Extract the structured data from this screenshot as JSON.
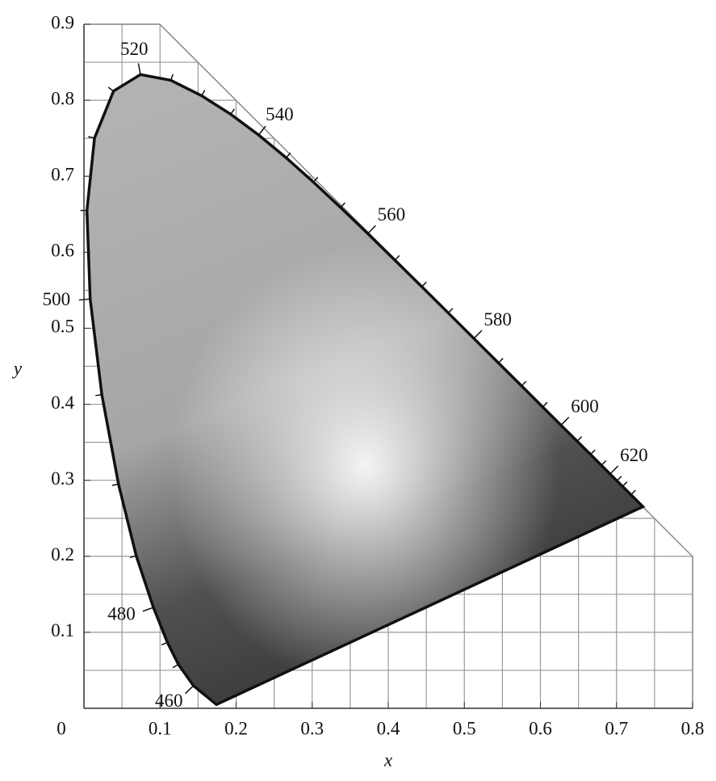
{
  "chart_data": {
    "type": "chromaticity",
    "x_label": "x",
    "y_label": "y",
    "xlim": [
      0,
      0.8
    ],
    "ylim": [
      0,
      0.9
    ],
    "xticks": [
      0,
      0.1,
      0.2,
      0.3,
      0.4,
      0.5,
      0.6,
      0.7,
      0.8
    ],
    "yticks": [
      0.1,
      0.2,
      0.3,
      0.4,
      0.5,
      0.6,
      0.7,
      0.8,
      0.9
    ],
    "xminorticks": [
      0.05,
      0.15,
      0.25,
      0.35,
      0.45,
      0.55,
      0.65,
      0.75
    ],
    "yminorticks": [
      0.05,
      0.15,
      0.25,
      0.35,
      0.45,
      0.55,
      0.65,
      0.75,
      0.85
    ],
    "grid": true,
    "series": [
      {
        "color": "#111111",
        "x": [
          0.1741,
          0.144,
          0.1241,
          0.1096,
          0.0913,
          0.0687,
          0.0454,
          0.0235,
          0.0082,
          0.0039,
          0.0139,
          0.0389,
          0.0743,
          0.1142,
          0.1547,
          0.1929,
          0.2296,
          0.2658,
          0.3016,
          0.3373,
          0.3731,
          0.4087,
          0.4441,
          0.4788,
          0.5125,
          0.5448,
          0.5752,
          0.6029,
          0.627,
          0.6482,
          0.6658,
          0.6801,
          0.6915,
          0.7006,
          0.7079,
          0.719,
          0.7347
        ],
        "y": [
          0.005,
          0.0297,
          0.0578,
          0.0868,
          0.1327,
          0.2007,
          0.295,
          0.4127,
          0.5384,
          0.6548,
          0.7502,
          0.812,
          0.8338,
          0.8262,
          0.8059,
          0.7816,
          0.7543,
          0.7243,
          0.6923,
          0.6589,
          0.6245,
          0.5896,
          0.5547,
          0.5202,
          0.4866,
          0.4544,
          0.4242,
          0.3965,
          0.3725,
          0.3514,
          0.334,
          0.3197,
          0.3083,
          0.2993,
          0.292,
          0.2809,
          0.2653
        ],
        "point_labels": [
          null,
          "460",
          null,
          null,
          "480",
          null,
          null,
          null,
          "500",
          null,
          null,
          null,
          "520",
          null,
          null,
          null,
          "540",
          null,
          null,
          null,
          "560",
          null,
          null,
          null,
          "580",
          null,
          null,
          null,
          "600",
          null,
          null,
          null,
          "620",
          null,
          null,
          null,
          null
        ]
      }
    ]
  }
}
